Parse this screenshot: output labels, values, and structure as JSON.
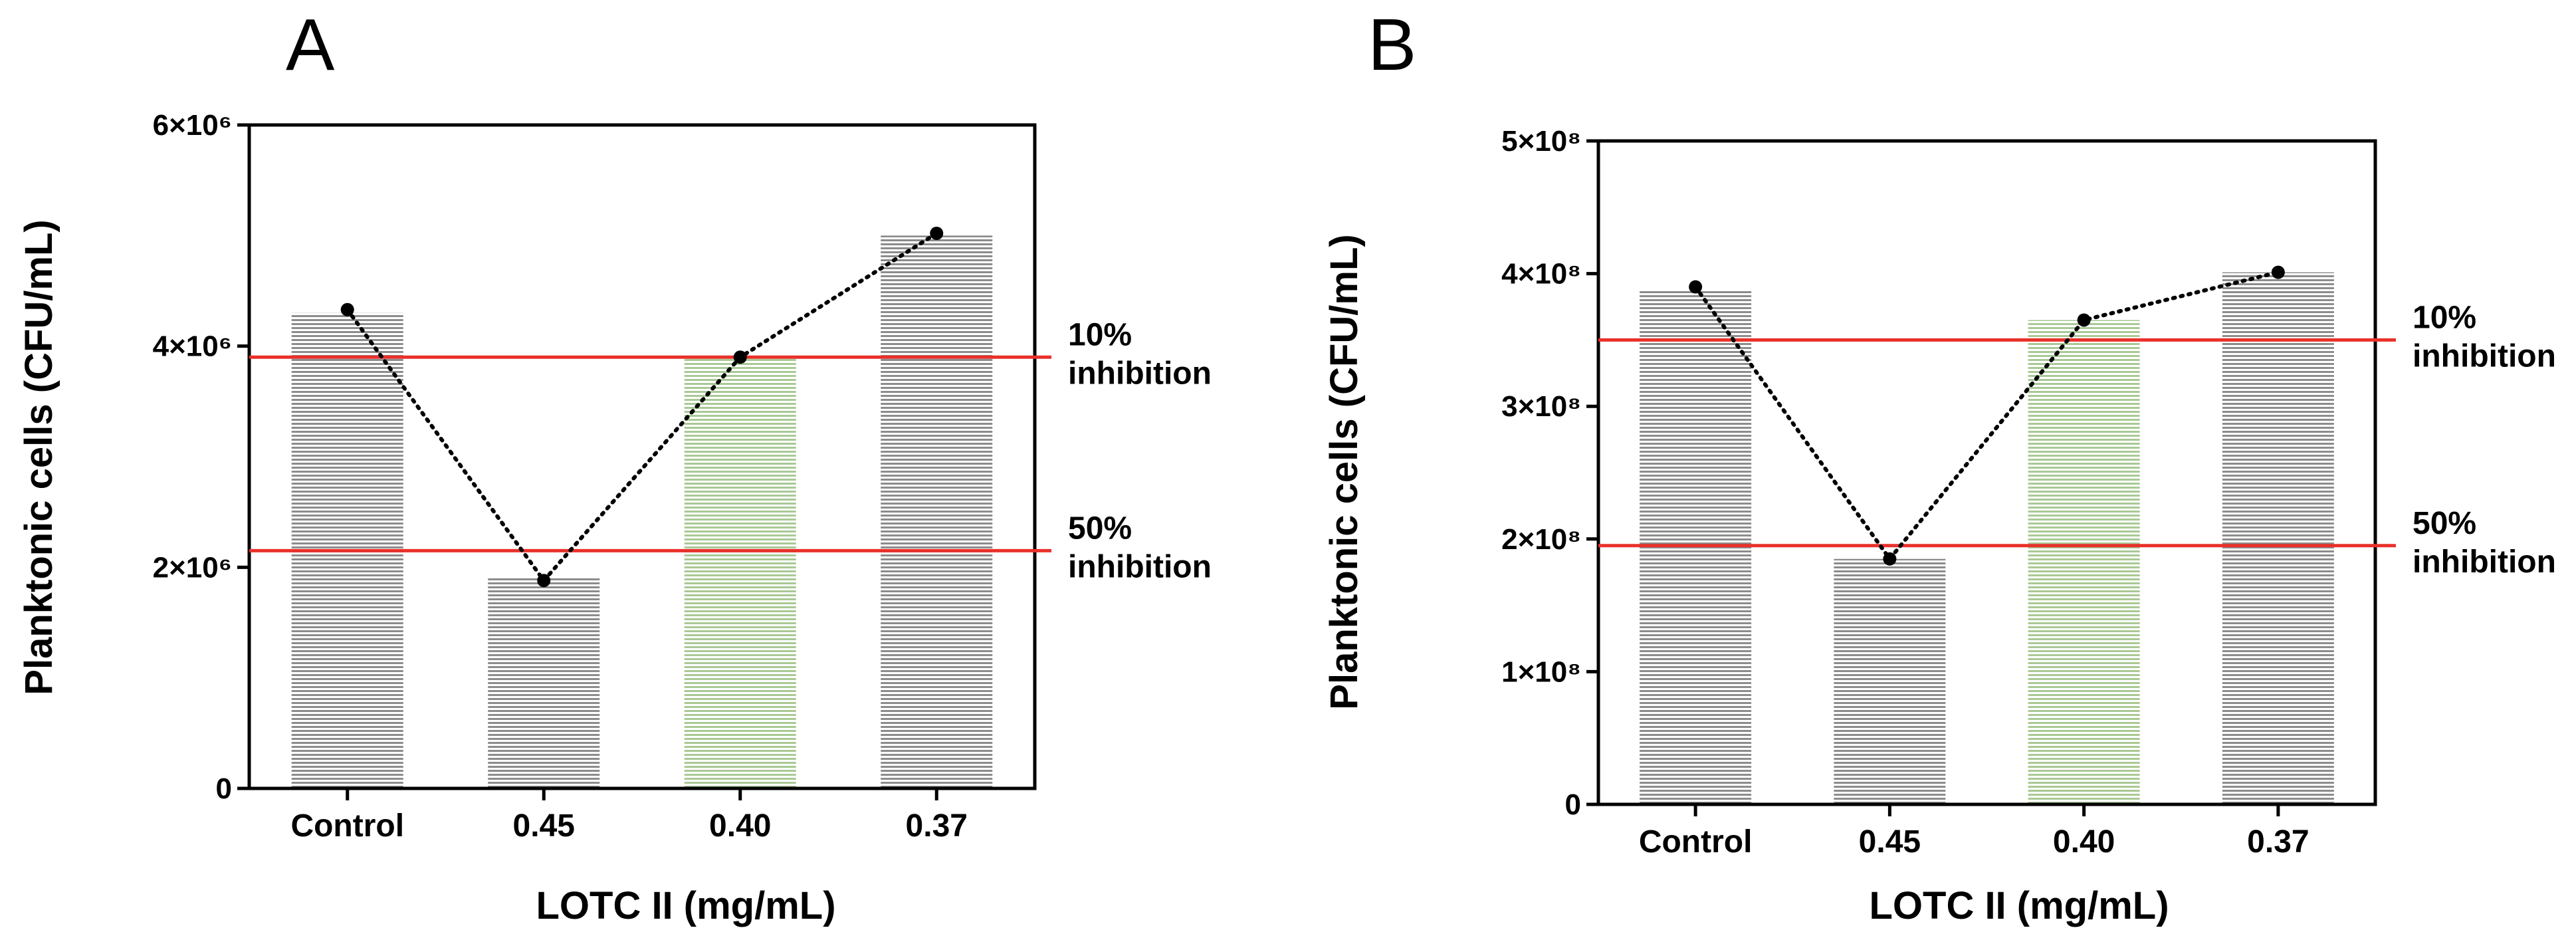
{
  "chart_data": [
    {
      "panel": "A",
      "type": "bar",
      "title": "",
      "xlabel": "LOTC II (mg/mL)",
      "ylabel": "Planktonic cells (CFU/mL)",
      "categories": [
        "Control",
        "0.45",
        "0.40",
        "0.37"
      ],
      "values": [
        4300000,
        1900000,
        3900000,
        5000000
      ],
      "bar_colors": [
        "#8c8c8c",
        "#8c8c8c",
        "#a9c995",
        "#8c8c8c"
      ],
      "line_points": [
        4330000,
        1880000,
        3900000,
        5020000
      ],
      "ylim": [
        0,
        6000000
      ],
      "yticks": [
        0,
        2000000,
        4000000,
        6000000
      ],
      "ytick_labels": [
        "0",
        "2×10⁶",
        "4×10⁶",
        "6×10⁶"
      ],
      "reference_lines": [
        {
          "value": 3900000,
          "label_pct": "10%",
          "label_text": "inhibition",
          "color": "#e8312a"
        },
        {
          "value": 2150000,
          "label_pct": "50%",
          "label_text": "inhibition",
          "color": "#e8312a"
        }
      ]
    },
    {
      "panel": "B",
      "type": "bar",
      "title": "",
      "xlabel": "LOTC II (mg/mL)",
      "ylabel": "Planktonic cells (CFU/mL)",
      "categories": [
        "Control",
        "0.45",
        "0.40",
        "0.37"
      ],
      "values": [
        387000000,
        185000000,
        365000000,
        401000000
      ],
      "bar_colors": [
        "#8c8c8c",
        "#8c8c8c",
        "#a9c995",
        "#8c8c8c"
      ],
      "line_points": [
        390000000,
        185000000,
        365000000,
        401000000
      ],
      "ylim": [
        0,
        500000000
      ],
      "yticks": [
        0,
        100000000,
        200000000,
        300000000,
        400000000,
        500000000
      ],
      "ytick_labels": [
        "0",
        "1×10⁸",
        "2×10⁸",
        "3×10⁸",
        "4×10⁸",
        "5×10⁸"
      ],
      "reference_lines": [
        {
          "value": 350000000,
          "label_pct": "10%",
          "label_text": "inhibition",
          "color": "#e8312a"
        },
        {
          "value": 195000000,
          "label_pct": "50%",
          "label_text": "inhibition",
          "color": "#e8312a"
        }
      ]
    }
  ]
}
